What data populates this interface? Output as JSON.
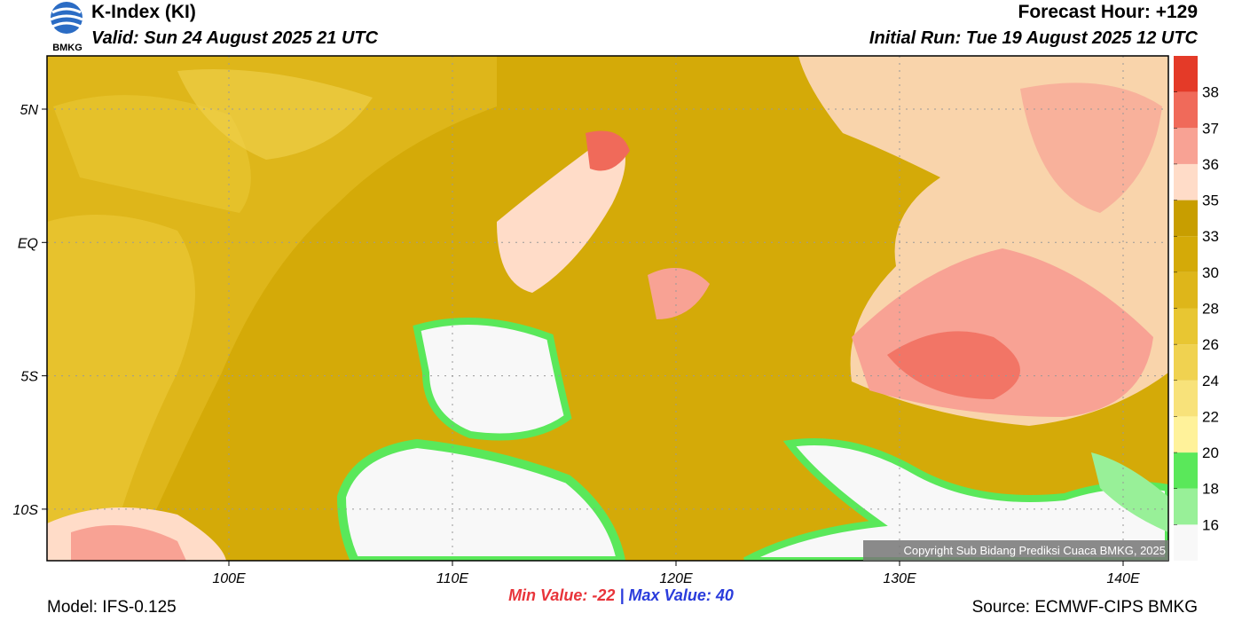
{
  "header": {
    "logo": "BMKG",
    "title": "K-Index (KI)",
    "valid": "Valid: Sun 24 August 2025 21 UTC",
    "forecast_hour": "Forecast Hour: +129",
    "initial_run": "Initial Run: Tue 19 August 2025 12 UTC"
  },
  "map": {
    "lat_labels": [
      "5N",
      "EQ",
      "5S",
      "10S"
    ],
    "lon_labels": [
      "100E",
      "110E",
      "120E",
      "130E",
      "140E"
    ],
    "copyright": "Copyright Sub Bidang Prediksi Cuaca BMKG, 2025"
  },
  "colorbar": {
    "labels": [
      16,
      18,
      20,
      22,
      24,
      26,
      28,
      30,
      33,
      35,
      36,
      37,
      38
    ],
    "colors": [
      "#f8f8f8",
      "#98f098",
      "#5ae85a",
      "#fff29a",
      "#f8e27a",
      "#f0d250",
      "#e8c632",
      "#deb61a",
      "#d4aa08",
      "#c89e00",
      "#ffdcc8",
      "#f8a294",
      "#f06a5a",
      "#e43a28"
    ]
  },
  "footer": {
    "min_label": "Min Value:",
    "min_value": -22,
    "separator": "|",
    "max_label": "Max Value:",
    "max_value": 40,
    "model": "Model: IFS-0.125",
    "source": "Source: ECMWF-CIPS BMKG"
  }
}
